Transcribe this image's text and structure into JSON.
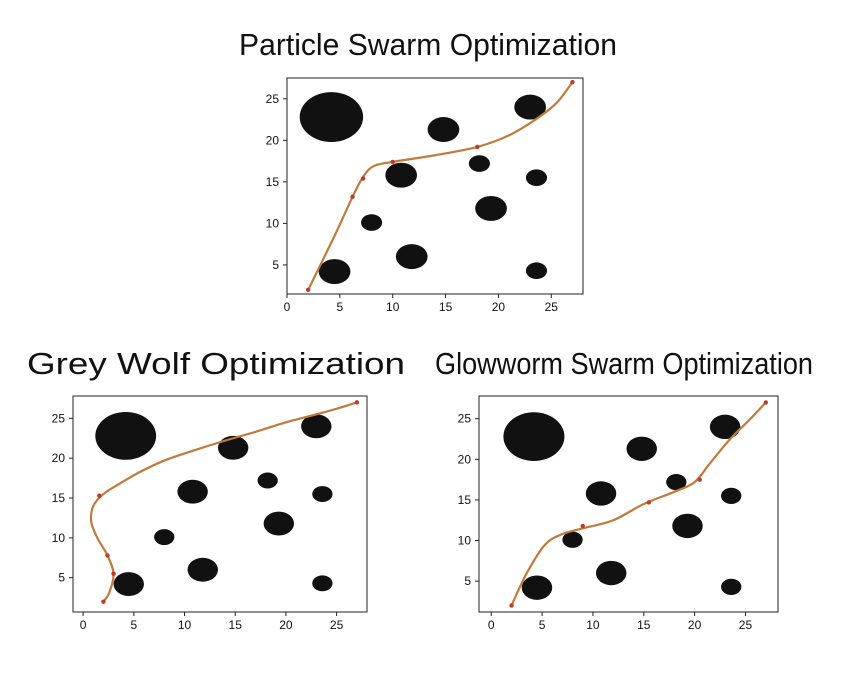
{
  "page": {
    "background": "#ffffff"
  },
  "style": {
    "path_color": "#c07a3a",
    "waypoint_color": "#c0392b",
    "obstacle_color": "#111111"
  },
  "obstacles": [
    {
      "x": 4.2,
      "y": 22.8,
      "rx": 3.0,
      "ry": 3.0
    },
    {
      "x": 4.5,
      "y": 4.2,
      "rx": 1.5,
      "ry": 1.5
    },
    {
      "x": 8.0,
      "y": 10.1,
      "rx": 1.0,
      "ry": 1.0
    },
    {
      "x": 10.8,
      "y": 15.8,
      "rx": 1.5,
      "ry": 1.5
    },
    {
      "x": 11.8,
      "y": 6.0,
      "rx": 1.5,
      "ry": 1.5
    },
    {
      "x": 14.8,
      "y": 21.3,
      "rx": 1.5,
      "ry": 1.5
    },
    {
      "x": 18.2,
      "y": 17.2,
      "rx": 1.0,
      "ry": 1.0
    },
    {
      "x": 19.3,
      "y": 11.8,
      "rx": 1.5,
      "ry": 1.5
    },
    {
      "x": 23.0,
      "y": 24.0,
      "rx": 1.5,
      "ry": 1.5
    },
    {
      "x": 23.6,
      "y": 15.5,
      "rx": 1.0,
      "ry": 1.0
    },
    {
      "x": 23.6,
      "y": 4.3,
      "rx": 1.0,
      "ry": 1.0
    }
  ],
  "chart_data": [
    {
      "type": "scatter",
      "title": "Particle Swarm Optimization",
      "xlim": [
        0,
        28
      ],
      "ylim": [
        1.5,
        27.5
      ],
      "xticks": [
        0,
        5,
        10,
        15,
        20,
        25
      ],
      "yticks": [
        5,
        10,
        15,
        20,
        25
      ],
      "xtick_labels": [
        "0",
        "5",
        "10",
        "15",
        "20",
        "25"
      ],
      "ytick_labels": [
        "5",
        "10",
        "15",
        "20",
        "25"
      ],
      "grid": false,
      "path": [
        [
          2,
          2
        ],
        [
          4.5,
          8.5
        ],
        [
          6.2,
          13.2
        ],
        [
          7.2,
          15.6
        ],
        [
          8.2,
          16.9
        ],
        [
          10,
          17.4
        ],
        [
          14,
          18.2
        ],
        [
          18,
          19.2
        ],
        [
          21,
          20.6
        ],
        [
          23.5,
          22.5
        ],
        [
          25.5,
          24.5
        ],
        [
          27,
          27
        ]
      ],
      "waypoints": [
        [
          2,
          2
        ],
        [
          6.2,
          13.2
        ],
        [
          7.2,
          15.4
        ],
        [
          10,
          17.4
        ],
        [
          18,
          19.2
        ],
        [
          27,
          27
        ]
      ]
    },
    {
      "type": "scatter",
      "title": "Grey Wolf Optimization",
      "xlim": [
        -1,
        28
      ],
      "ylim": [
        0.7,
        27.8
      ],
      "xticks": [
        0,
        5,
        10,
        15,
        20,
        25
      ],
      "yticks": [
        5,
        10,
        15,
        20,
        25
      ],
      "xtick_labels": [
        "0",
        "5",
        "10",
        "15",
        "20",
        "25"
      ],
      "ytick_labels": [
        "5",
        "10",
        "15",
        "20",
        "25"
      ],
      "grid": false,
      "path": [
        [
          2,
          2
        ],
        [
          2.6,
          3.2
        ],
        [
          3,
          5.5
        ],
        [
          2.4,
          7.8
        ],
        [
          1.4,
          10
        ],
        [
          0.8,
          12
        ],
        [
          1,
          14
        ],
        [
          2,
          15.5
        ],
        [
          3.6,
          16.8
        ],
        [
          5.5,
          18.2
        ],
        [
          8,
          19.7
        ],
        [
          11,
          21
        ],
        [
          14,
          22.2
        ],
        [
          17,
          23.3
        ],
        [
          20,
          24.5
        ],
        [
          23,
          25.5
        ],
        [
          25,
          26.2
        ],
        [
          27,
          27
        ]
      ],
      "waypoints": [
        [
          2,
          2
        ],
        [
          3,
          5.5
        ],
        [
          2.4,
          7.8
        ],
        [
          1.6,
          15.3
        ],
        [
          27,
          27
        ]
      ]
    },
    {
      "type": "scatter",
      "title": "Glowworm Swarm Optimization",
      "xlim": [
        -1.2,
        28.2
      ],
      "ylim": [
        1.2,
        27.8
      ],
      "xticks": [
        0,
        5,
        10,
        15,
        20,
        25
      ],
      "yticks": [
        5,
        10,
        15,
        20,
        25
      ],
      "xtick_labels": [
        "0",
        "5",
        "10",
        "15",
        "20",
        "25"
      ],
      "ytick_labels": [
        "5",
        "10",
        "15",
        "20",
        "25"
      ],
      "grid": false,
      "path": [
        [
          2,
          2
        ],
        [
          3.5,
          6
        ],
        [
          5.3,
          9.5
        ],
        [
          7,
          10.8
        ],
        [
          9,
          11.5
        ],
        [
          12,
          12.5
        ],
        [
          15,
          14.5
        ],
        [
          18,
          16
        ],
        [
          20,
          17.2
        ],
        [
          21.5,
          19.5
        ],
        [
          23.5,
          22.5
        ],
        [
          25.5,
          25
        ],
        [
          27,
          27
        ]
      ],
      "waypoints": [
        [
          2,
          2
        ],
        [
          9,
          11.8
        ],
        [
          15.5,
          14.7
        ],
        [
          20.5,
          17.5
        ],
        [
          27,
          27
        ]
      ]
    }
  ]
}
